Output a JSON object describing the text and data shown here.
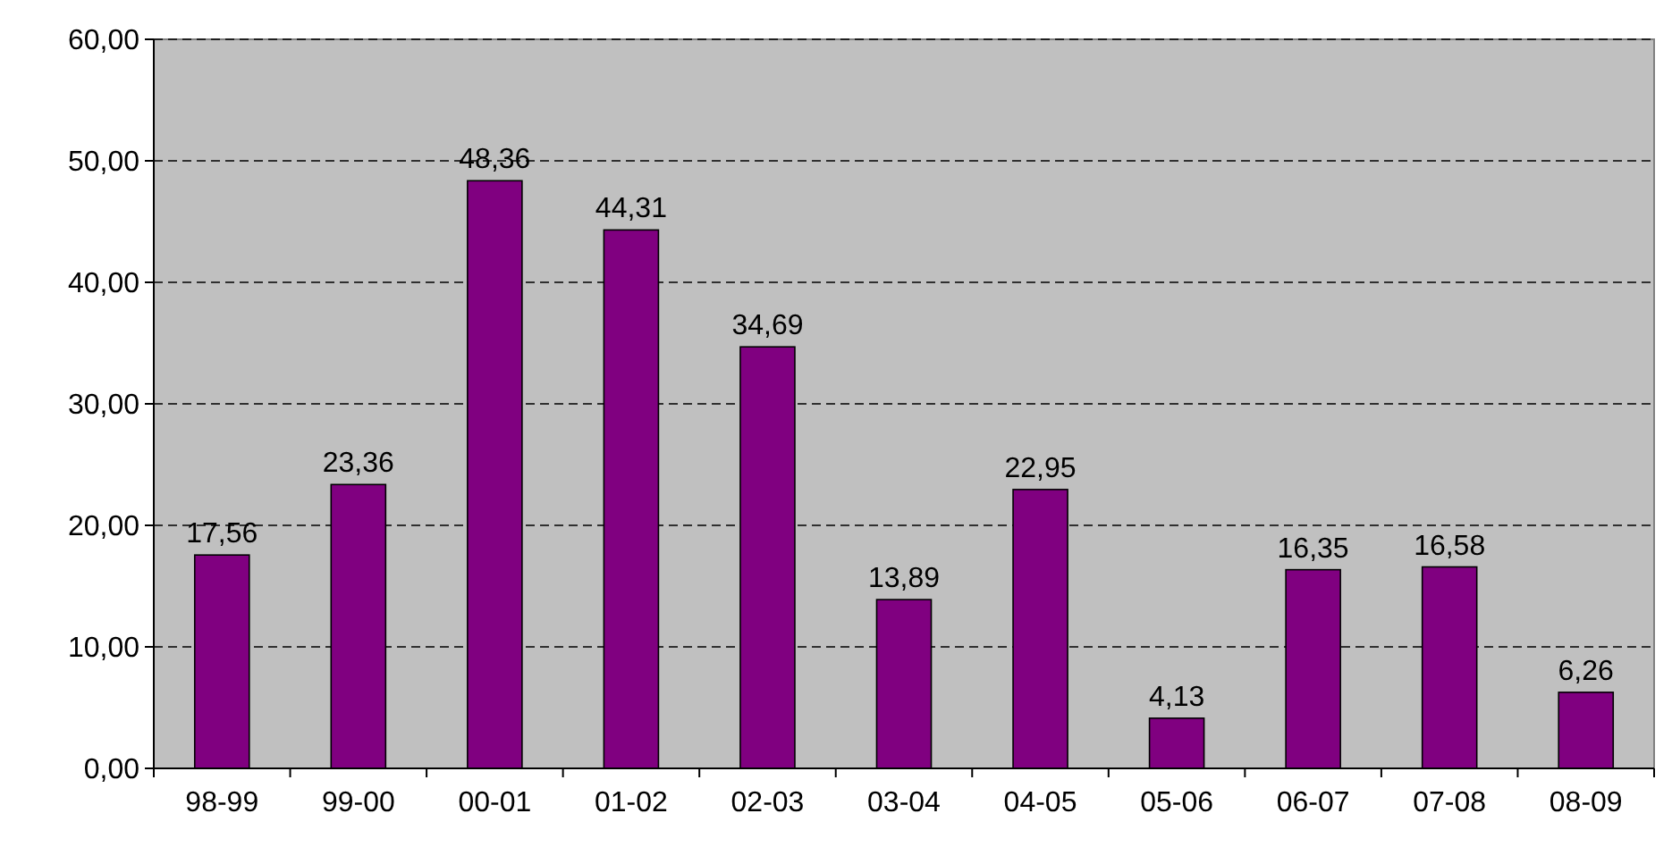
{
  "chart_data": {
    "type": "bar",
    "categories": [
      "98-99",
      "99-00",
      "00-01",
      "01-02",
      "02-03",
      "03-04",
      "04-05",
      "05-06",
      "06-07",
      "07-08",
      "08-09"
    ],
    "values": [
      17.56,
      23.36,
      48.36,
      44.31,
      34.69,
      13.89,
      22.95,
      4.13,
      16.35,
      16.58,
      6.26
    ],
    "value_labels": [
      "17,56",
      "23,36",
      "48,36",
      "44,31",
      "34,69",
      "13,89",
      "22,95",
      "4,13",
      "16,35",
      "16,58",
      "6,26"
    ],
    "color": "#800080",
    "ylim": [
      0,
      60
    ],
    "yticks": [
      {
        "value": 0,
        "label": "0,00"
      },
      {
        "value": 10,
        "label": "10,00"
      },
      {
        "value": 20,
        "label": "20,00"
      },
      {
        "value": 30,
        "label": "30,00"
      },
      {
        "value": 40,
        "label": "40,00"
      },
      {
        "value": 50,
        "label": "50,00"
      },
      {
        "value": 60,
        "label": "60,00"
      }
    ],
    "grid": "y"
  }
}
